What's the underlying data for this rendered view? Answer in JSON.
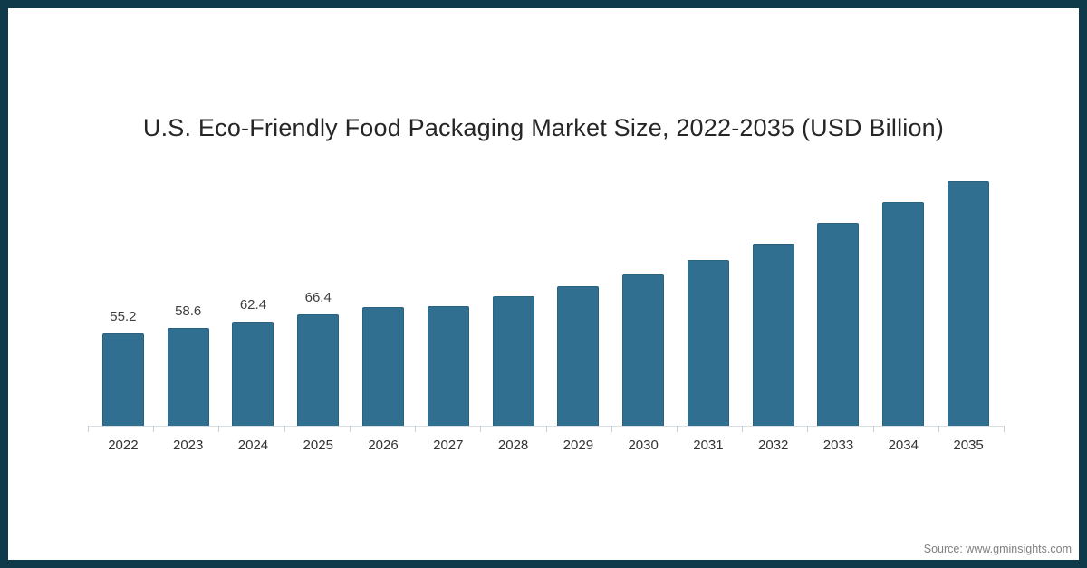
{
  "title": "U.S. Eco-Friendly Food Packaging Market Size, 2022-2035 (USD Billion)",
  "source": "Source: www.gminsights.com",
  "colors": {
    "frame": "#0e3a49",
    "bar_fill": "#306f90",
    "bar_edge": "#2a617f",
    "axis_line": "#d9dee3",
    "tick": "#c4ced6",
    "title_text": "#262626",
    "axis_label_text": "#333333",
    "data_label_text": "#404040",
    "source_text": "#808080",
    "background": "#ffffff"
  },
  "chart_data": {
    "type": "bar",
    "title": "U.S. Eco-Friendly Food Packaging Market Size, 2022-2035 (USD Billion)",
    "unit": "USD Billion",
    "categories": [
      "2022",
      "2023",
      "2024",
      "2025",
      "2026",
      "2027",
      "2028",
      "2029",
      "2030",
      "2031",
      "2032",
      "2033",
      "2034",
      "2035"
    ],
    "values": [
      55.2,
      58.6,
      62.4,
      66.4,
      70.9,
      71.2,
      77.1,
      83.2,
      90.4,
      98.8,
      108.8,
      120.9,
      133.5,
      148.5
    ],
    "labels": [
      "55.2",
      "58.6",
      "62.4",
      "66.4",
      "",
      "",
      "",
      "",
      "",
      "",
      "",
      "",
      "",
      ""
    ],
    "note": "Values for 2026-2035 are unlabeled in the figure and estimated from bar heights",
    "xlabel": "",
    "ylabel": "",
    "ylim": [
      0,
      160
    ],
    "grid": false,
    "legend": false,
    "data_label_position": "above bars 2022-2025 only"
  }
}
